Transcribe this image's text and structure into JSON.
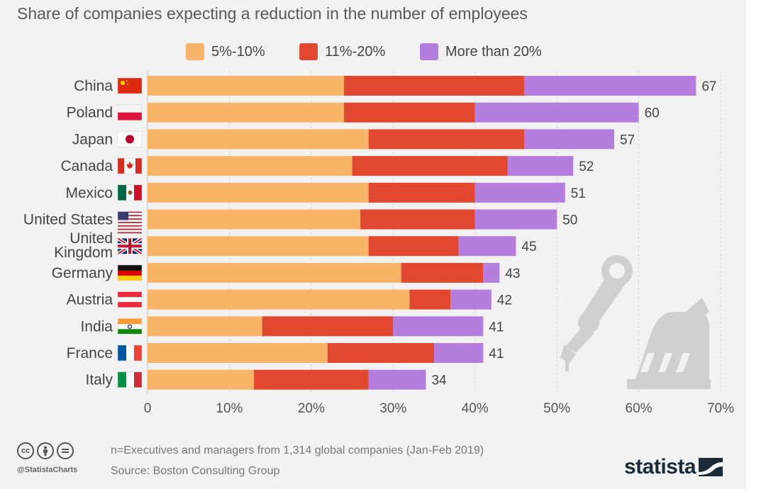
{
  "chart_data": {
    "type": "bar",
    "orientation": "horizontal",
    "stacked": true,
    "title": "Share of companies expecting a reduction in the number of employees",
    "categories": [
      "China",
      "Poland",
      "Japan",
      "Canada",
      "Mexico",
      "United States",
      "United Kingdom",
      "Germany",
      "Austria",
      "India",
      "France",
      "Italy"
    ],
    "category_lines": [
      [
        "China"
      ],
      [
        "Poland"
      ],
      [
        "Japan"
      ],
      [
        "Canada"
      ],
      [
        "Mexico"
      ],
      [
        "United States"
      ],
      [
        "United",
        "Kingdom"
      ],
      [
        "Germany"
      ],
      [
        "Austria"
      ],
      [
        "India"
      ],
      [
        "France"
      ],
      [
        "Italy"
      ]
    ],
    "series": [
      {
        "name": "5%-10%",
        "color": "#f9b468",
        "values": [
          24,
          24,
          27,
          25,
          27,
          26,
          27,
          31,
          32,
          14,
          22,
          13
        ]
      },
      {
        "name": "11%-20%",
        "color": "#e2472f",
        "values": [
          22,
          16,
          19,
          19,
          13,
          14,
          11,
          10,
          5,
          16,
          13,
          14
        ]
      },
      {
        "name": "More than 20%",
        "color": "#b57ede",
        "values": [
          21,
          20,
          11,
          8,
          11,
          10,
          7,
          2,
          5,
          11,
          6,
          7
        ]
      }
    ],
    "totals": [
      67,
      60,
      57,
      52,
      51,
      50,
      45,
      43,
      42,
      41,
      41,
      34
    ],
    "xlim": [
      0,
      70
    ],
    "xticks": [
      0,
      10,
      20,
      30,
      40,
      50,
      60,
      70
    ],
    "xtick_labels": [
      "0",
      "10%",
      "20%",
      "30%",
      "40%",
      "50%",
      "60%",
      "70%"
    ],
    "legend_position": "top",
    "grid": true
  },
  "footer": {
    "cc_icons": [
      "cc-icon",
      "attribution-icon",
      "no-derivatives-icon"
    ],
    "handle": "@StatistaCharts",
    "note": "n=Executives and managers from 1,314 global companies (Jan-Feb 2019)",
    "source": "Source: Boston Consulting Group",
    "brand": "statista"
  },
  "colors": {
    "background": "#f2f2f2",
    "grid": "#d0d0d0",
    "text": "#444444",
    "robot_watermark": "#cfcfcf"
  }
}
